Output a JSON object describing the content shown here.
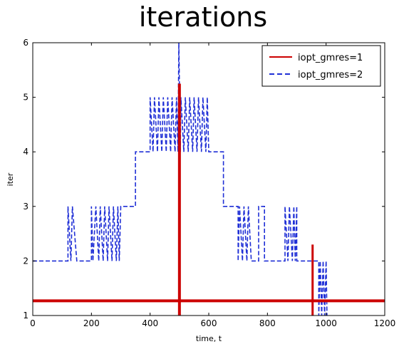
{
  "chart_data": {
    "type": "line",
    "title": "iterations",
    "xlabel": "time, t",
    "ylabel": "iter",
    "xlim": [
      0,
      1200
    ],
    "ylim": [
      1,
      6
    ],
    "xticks": [
      "0",
      "200",
      "400",
      "600",
      "800",
      "1000",
      "1200"
    ],
    "yticks": [
      "1",
      "2",
      "3",
      "4",
      "5",
      "6"
    ],
    "grid": false,
    "legend_position": "top-right",
    "series": [
      {
        "name": "iopt_gmres=1",
        "color": "#cc0000",
        "style": "solid",
        "segments": [
          [
            [
              0,
              1.27
            ],
            [
              1200,
              1.27
            ]
          ],
          [
            [
              500,
              1
            ],
            [
              500,
              5.25
            ]
          ],
          [
            [
              954,
              1
            ],
            [
              954,
              2.3
            ]
          ]
        ]
      },
      {
        "name": "iopt_gmres=2",
        "color": "#1f2fd6",
        "style": "dashed",
        "steps": [
          [
            0,
            2
          ],
          [
            120,
            2
          ],
          [
            120,
            3
          ],
          [
            130,
            2
          ],
          [
            135,
            3
          ],
          [
            150,
            2
          ],
          [
            200,
            2
          ],
          [
            200,
            3
          ],
          [
            205,
            2
          ],
          [
            215,
            3
          ],
          [
            225,
            2
          ],
          [
            230,
            3
          ],
          [
            240,
            2
          ],
          [
            245,
            3
          ],
          [
            255,
            2
          ],
          [
            260,
            3
          ],
          [
            270,
            2
          ],
          [
            275,
            3
          ],
          [
            285,
            2
          ],
          [
            290,
            3
          ],
          [
            295,
            2
          ],
          [
            300,
            3
          ],
          [
            350,
            3
          ],
          [
            350,
            4
          ],
          [
            400,
            4
          ],
          [
            400,
            5
          ],
          [
            410,
            4
          ],
          [
            415,
            5
          ],
          [
            425,
            4
          ],
          [
            430,
            5
          ],
          [
            440,
            4
          ],
          [
            445,
            5
          ],
          [
            455,
            4
          ],
          [
            460,
            5
          ],
          [
            470,
            4
          ],
          [
            475,
            5
          ],
          [
            485,
            4
          ],
          [
            490,
            5
          ],
          [
            495,
            4
          ],
          [
            498,
            6
          ],
          [
            503,
            4
          ],
          [
            505,
            5
          ],
          [
            515,
            4
          ],
          [
            520,
            5
          ],
          [
            530,
            4
          ],
          [
            535,
            5
          ],
          [
            545,
            4
          ],
          [
            550,
            5
          ],
          [
            560,
            4
          ],
          [
            565,
            5
          ],
          [
            575,
            4
          ],
          [
            580,
            5
          ],
          [
            590,
            4
          ],
          [
            595,
            5
          ],
          [
            600,
            4
          ],
          [
            650,
            4
          ],
          [
            650,
            3
          ],
          [
            700,
            3
          ],
          [
            700,
            2
          ],
          [
            705,
            3
          ],
          [
            715,
            2
          ],
          [
            720,
            3
          ],
          [
            730,
            2
          ],
          [
            735,
            3
          ],
          [
            745,
            2
          ],
          [
            750,
            2
          ],
          [
            770,
            2
          ],
          [
            770,
            3
          ],
          [
            790,
            3
          ],
          [
            790,
            2
          ],
          [
            800,
            2
          ],
          [
            850,
            2
          ],
          [
            860,
            2
          ],
          [
            860,
            3
          ],
          [
            870,
            2
          ],
          [
            875,
            3
          ],
          [
            885,
            2
          ],
          [
            890,
            3
          ],
          [
            895,
            2
          ],
          [
            900,
            3
          ],
          [
            900,
            2
          ],
          [
            950,
            2
          ],
          [
            975,
            2
          ],
          [
            975,
            1
          ],
          [
            980,
            2
          ],
          [
            985,
            1
          ],
          [
            990,
            2
          ],
          [
            995,
            1
          ],
          [
            1000,
            2
          ],
          [
            1003,
            1
          ]
        ]
      }
    ]
  }
}
